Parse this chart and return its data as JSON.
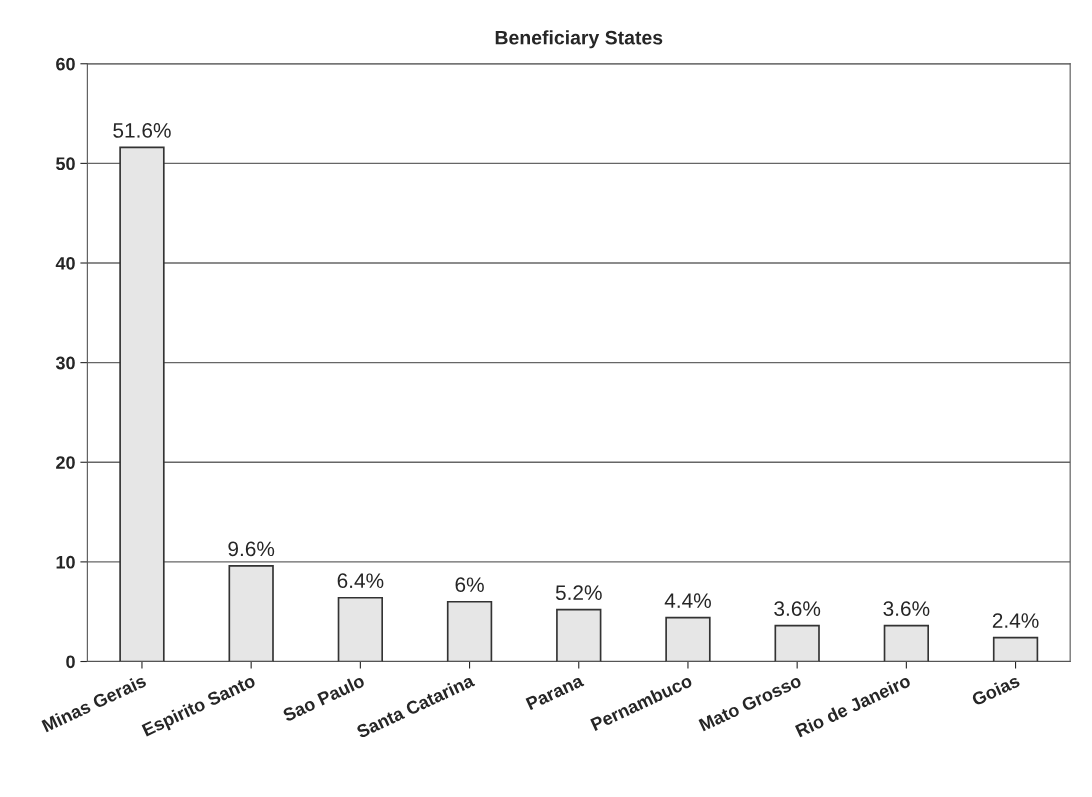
{
  "chart_data": {
    "type": "bar",
    "title": "Beneficiary States",
    "categories": [
      "Minas Gerais",
      "Espirito Santo",
      "Sao Paulo",
      "Santa Catarina",
      "Parana",
      "Pernambuco",
      "Mato Grosso",
      "Rio de Janeiro",
      "Goias"
    ],
    "values": [
      51.6,
      9.6,
      6.4,
      6,
      5.2,
      4.4,
      3.6,
      3.6,
      2.4
    ],
    "value_labels": [
      "51.6%",
      "9.6%",
      "6.4%",
      "6%",
      "5.2%",
      "4.4%",
      "3.6%",
      "3.6%",
      "2.4%"
    ],
    "color": "#e6e6e6",
    "ylim": [
      0,
      60
    ],
    "yticks": [
      0,
      10,
      20,
      30,
      40,
      50,
      60
    ],
    "grid": "y"
  }
}
